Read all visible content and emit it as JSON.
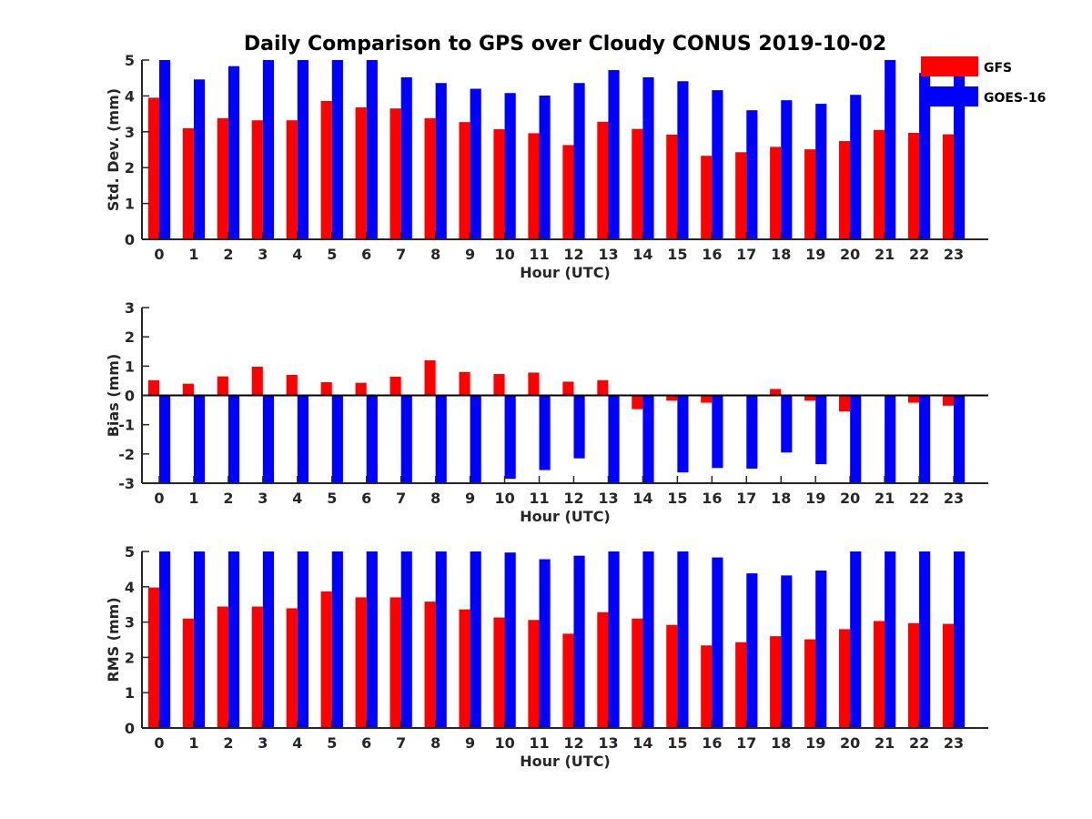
{
  "title": "Daily Comparison to GPS over Cloudy CONUS 2019-10-02",
  "colors": {
    "GFS": "#ff0000",
    "GOES-16": "#0000ff",
    "axis": "#262626"
  },
  "legend": {
    "placement": "top-right",
    "entries": [
      "GFS",
      "GOES-16"
    ]
  },
  "chart_data": [
    {
      "type": "bar",
      "xlabel": "Hour (UTC)",
      "ylabel": "Std. Dev. (mm)",
      "ylim": [
        0,
        5
      ],
      "yticks": [
        0,
        1,
        2,
        3,
        4,
        5
      ],
      "categories": [
        "0",
        "1",
        "2",
        "3",
        "4",
        "5",
        "6",
        "7",
        "8",
        "9",
        "10",
        "11",
        "12",
        "13",
        "14",
        "15",
        "16",
        "17",
        "18",
        "19",
        "20",
        "21",
        "22",
        "23"
      ],
      "series": [
        {
          "name": "GFS",
          "values": [
            3.95,
            3.1,
            3.38,
            3.32,
            3.32,
            3.86,
            3.68,
            3.65,
            3.38,
            3.27,
            3.07,
            2.96,
            2.63,
            3.28,
            3.08,
            2.92,
            2.33,
            2.43,
            2.58,
            2.51,
            2.74,
            3.05,
            2.97,
            2.93
          ]
        },
        {
          "name": "GOES-16",
          "values": [
            5.0,
            4.46,
            4.83,
            5.0,
            5.0,
            5.0,
            5.0,
            4.52,
            4.36,
            4.2,
            4.08,
            4.01,
            4.36,
            4.72,
            4.52,
            4.41,
            4.16,
            3.6,
            3.88,
            3.78,
            4.03,
            5.0,
            4.64,
            4.63
          ]
        }
      ]
    },
    {
      "type": "bar",
      "xlabel": "Hour (UTC)",
      "ylabel": "Bias (mm)",
      "ylim": [
        -3,
        3
      ],
      "yticks": [
        -3,
        -2,
        -1,
        0,
        1,
        2,
        3
      ],
      "zero_line": true,
      "categories": [
        "0",
        "1",
        "2",
        "3",
        "4",
        "5",
        "6",
        "7",
        "8",
        "9",
        "10",
        "11",
        "12",
        "13",
        "14",
        "15",
        "16",
        "17",
        "18",
        "19",
        "20",
        "21",
        "22",
        "23"
      ],
      "series": [
        {
          "name": "GFS",
          "values": [
            0.52,
            0.4,
            0.65,
            0.98,
            0.7,
            0.45,
            0.43,
            0.64,
            1.2,
            0.8,
            0.73,
            0.78,
            0.47,
            0.52,
            -0.47,
            -0.18,
            -0.25,
            -0.02,
            0.22,
            -0.18,
            -0.55,
            0.0,
            -0.25,
            -0.35
          ]
        },
        {
          "name": "GOES-16",
          "values": [
            -3.0,
            -3.0,
            -3.0,
            -3.0,
            -3.0,
            -3.0,
            -3.0,
            -3.0,
            -3.0,
            -3.0,
            -2.85,
            -2.55,
            -2.15,
            -3.0,
            -3.0,
            -2.63,
            -2.48,
            -2.5,
            -1.95,
            -2.35,
            -3.0,
            -3.0,
            -3.0,
            -3.0
          ]
        }
      ]
    },
    {
      "type": "bar",
      "xlabel": "Hour (UTC)",
      "ylabel": "RMS (mm)",
      "ylim": [
        0,
        5
      ],
      "yticks": [
        0,
        1,
        2,
        3,
        4,
        5
      ],
      "categories": [
        "0",
        "1",
        "2",
        "3",
        "4",
        "5",
        "6",
        "7",
        "8",
        "9",
        "10",
        "11",
        "12",
        "13",
        "14",
        "15",
        "16",
        "17",
        "18",
        "19",
        "20",
        "21",
        "22",
        "23"
      ],
      "series": [
        {
          "name": "GFS",
          "values": [
            3.98,
            3.1,
            3.44,
            3.44,
            3.39,
            3.87,
            3.7,
            3.7,
            3.58,
            3.36,
            3.13,
            3.06,
            2.67,
            3.28,
            3.1,
            2.92,
            2.34,
            2.43,
            2.6,
            2.51,
            2.8,
            3.03,
            2.97,
            2.95
          ]
        },
        {
          "name": "GOES-16",
          "values": [
            5.0,
            5.0,
            5.0,
            5.0,
            5.0,
            5.0,
            5.0,
            5.0,
            5.0,
            5.0,
            4.97,
            4.78,
            4.88,
            5.0,
            5.0,
            5.0,
            4.83,
            4.38,
            4.32,
            4.46,
            5.0,
            5.0,
            5.0,
            5.0
          ]
        }
      ]
    }
  ]
}
